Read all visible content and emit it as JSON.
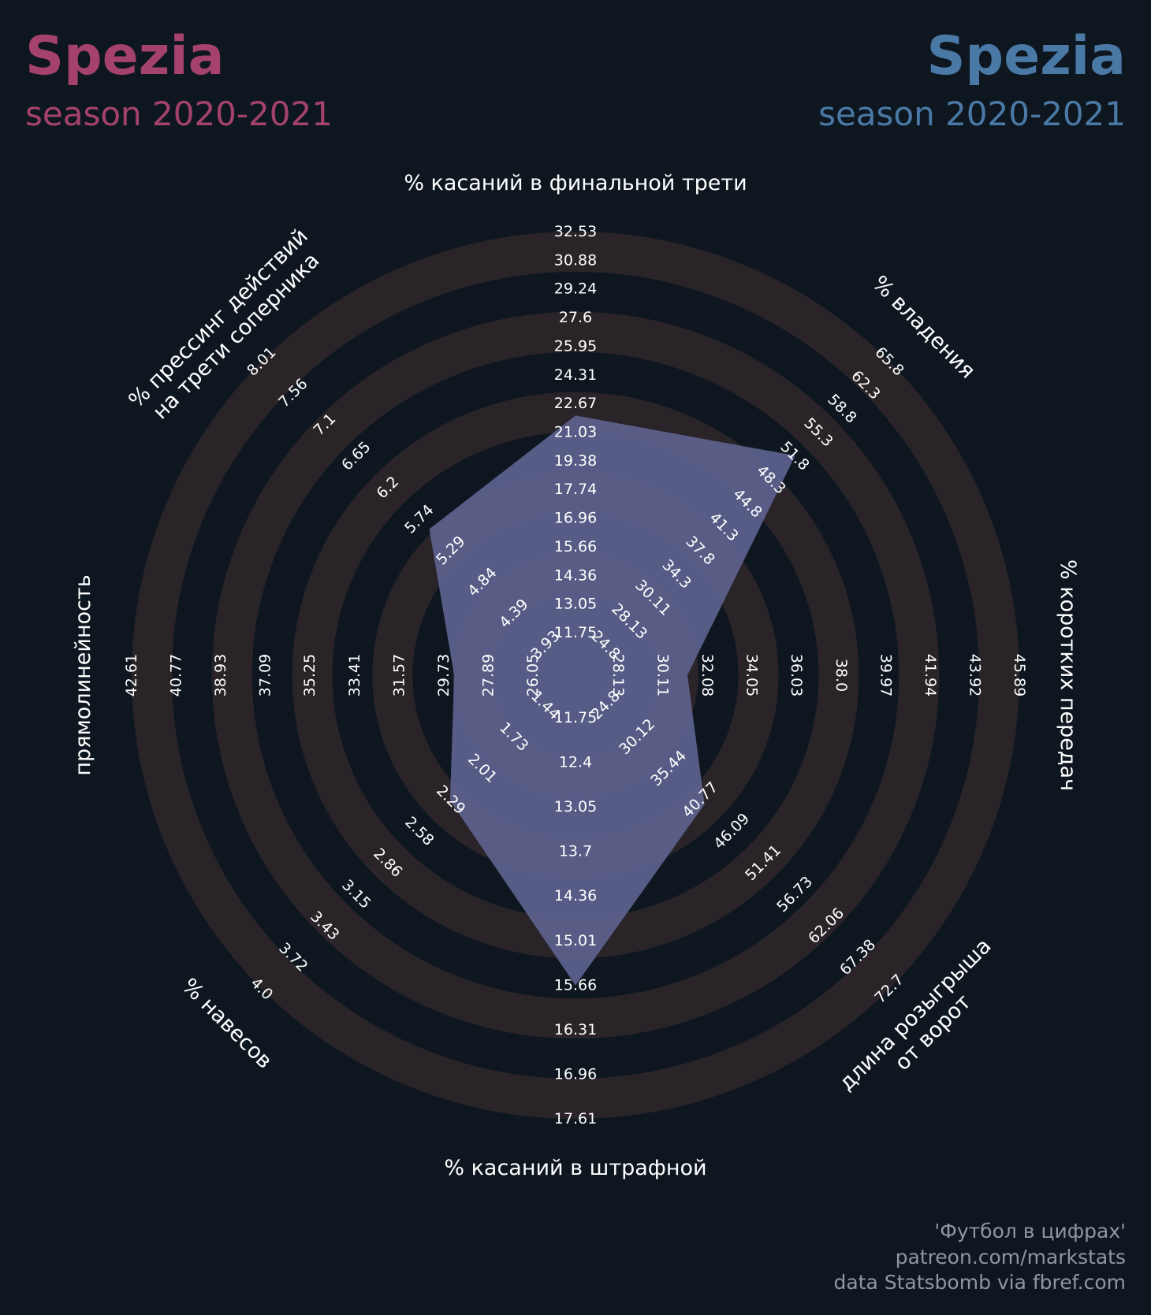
{
  "header": {
    "left_team": "Spezia",
    "left_season": "season 2020-2021",
    "right_team": "Spezia",
    "right_season": "season 2020-2021"
  },
  "colors": {
    "background": "#0e1720",
    "left_accent": "#a5426c",
    "right_accent": "#4a79a6",
    "ring": "#2a2429",
    "area": "#5e6490",
    "credit_text": "#8f96a3"
  },
  "chart_data": {
    "type": "radar",
    "axes": [
      {
        "label": "% касаний в финальной трети",
        "ticks": [
          "11.75",
          "13.05",
          "14.36",
          "15.66",
          "16.96",
          "17.74",
          "19.38",
          "21.03",
          "22.67",
          "24.31",
          "25.95",
          "27.6",
          "29.24",
          "30.88",
          "32.53"
        ],
        "value": 23.0
      },
      {
        "label": "% владения",
        "ticks": [
          "24.8",
          "28.13",
          "30.11",
          "34.3",
          "37.8",
          "41.3",
          "44.8",
          "48.3",
          "51.8",
          "55.3",
          "58.8",
          "62.3",
          "65.8"
        ],
        "value": 52.2
      },
      {
        "label": "% коротких передач",
        "ticks": [
          "28.13",
          "30.11",
          "32.08",
          "34.05",
          "36.03",
          "38.0",
          "39.97",
          "41.94",
          "43.92",
          "45.89"
        ],
        "value": 31.2
      },
      {
        "label": "длина розыгрыша\nот ворот",
        "ticks": [
          "24.8",
          "30.12",
          "35.44",
          "40.77",
          "46.09",
          "51.41",
          "56.73",
          "62.06",
          "67.38",
          "72.7"
        ],
        "value": 41.5
      },
      {
        "label": "% касаний в штрафной",
        "ticks": [
          "11.75",
          "12.4",
          "13.05",
          "13.7",
          "14.36",
          "15.01",
          "15.66",
          "16.31",
          "16.96",
          "17.61"
        ],
        "value": 15.66
      },
      {
        "label": "% навесов",
        "ticks": [
          "1.44",
          "1.73",
          "2.01",
          "2.29",
          "2.58",
          "2.86",
          "3.15",
          "3.43",
          "3.72",
          "4.0"
        ],
        "value": 2.3
      },
      {
        "label": "прямолинейность",
        "ticks": [
          "26.05",
          "27.89",
          "29.73",
          "31.57",
          "33.41",
          "35.25",
          "37.09",
          "38.93",
          "40.77",
          "42.61"
        ],
        "value": 29.3
      },
      {
        "label": "% прессинг действий\nна трети соперника",
        "ticks": [
          "3.93",
          "4.39",
          "4.84",
          "5.29",
          "5.74",
          "6.2",
          "6.65",
          "7.1",
          "7.56",
          "8.01"
        ],
        "value": 5.6
      }
    ]
  },
  "credits": {
    "line1": "'Футбол в цифрах'",
    "line2": "patreon.com/markstats",
    "line3": "data Statsbomb via fbref.com"
  }
}
